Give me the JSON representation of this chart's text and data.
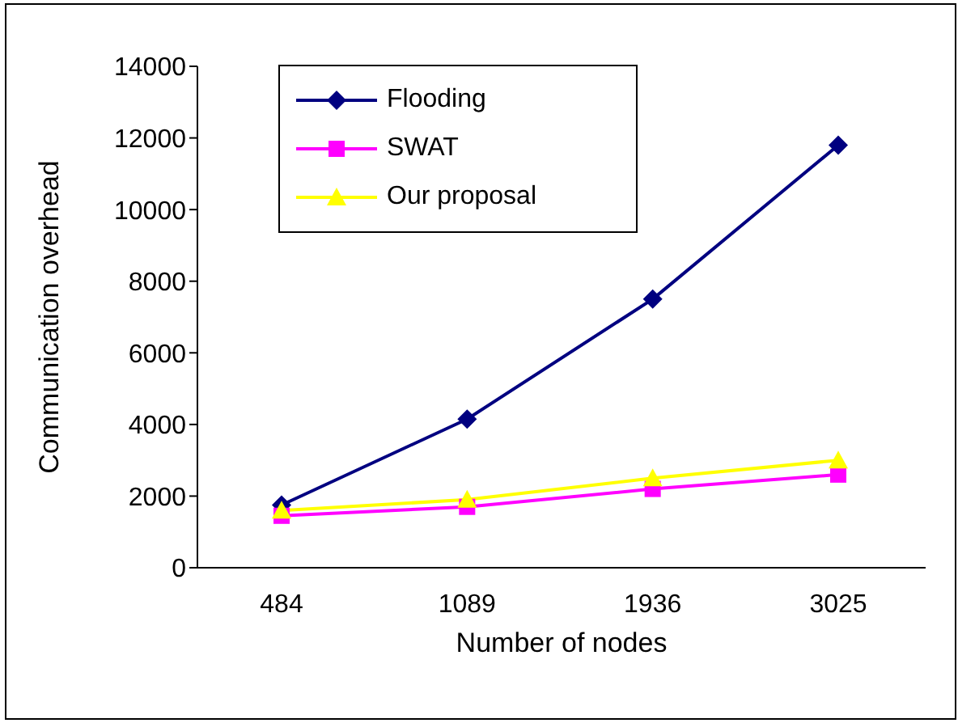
{
  "chart_data": {
    "type": "line",
    "xlabel": "Number of nodes",
    "ylabel": "Communication overhead",
    "categories": [
      "484",
      "1089",
      "1936",
      "3025"
    ],
    "series": [
      {
        "name": "Flooding",
        "color": "#000080",
        "marker": "diamond",
        "values": [
          1750,
          4150,
          7500,
          11800
        ]
      },
      {
        "name": "SWAT",
        "color": "#ff00ff",
        "marker": "square",
        "values": [
          1450,
          1700,
          2200,
          2600
        ]
      },
      {
        "name": "Our proposal",
        "color": "#ffff00",
        "marker": "triangle",
        "values": [
          1600,
          1900,
          2500,
          3000
        ]
      }
    ],
    "ylim": [
      0,
      14000
    ],
    "yticks": [
      0,
      2000,
      4000,
      6000,
      8000,
      10000,
      12000,
      14000
    ],
    "grid": false,
    "legend": "top left"
  }
}
